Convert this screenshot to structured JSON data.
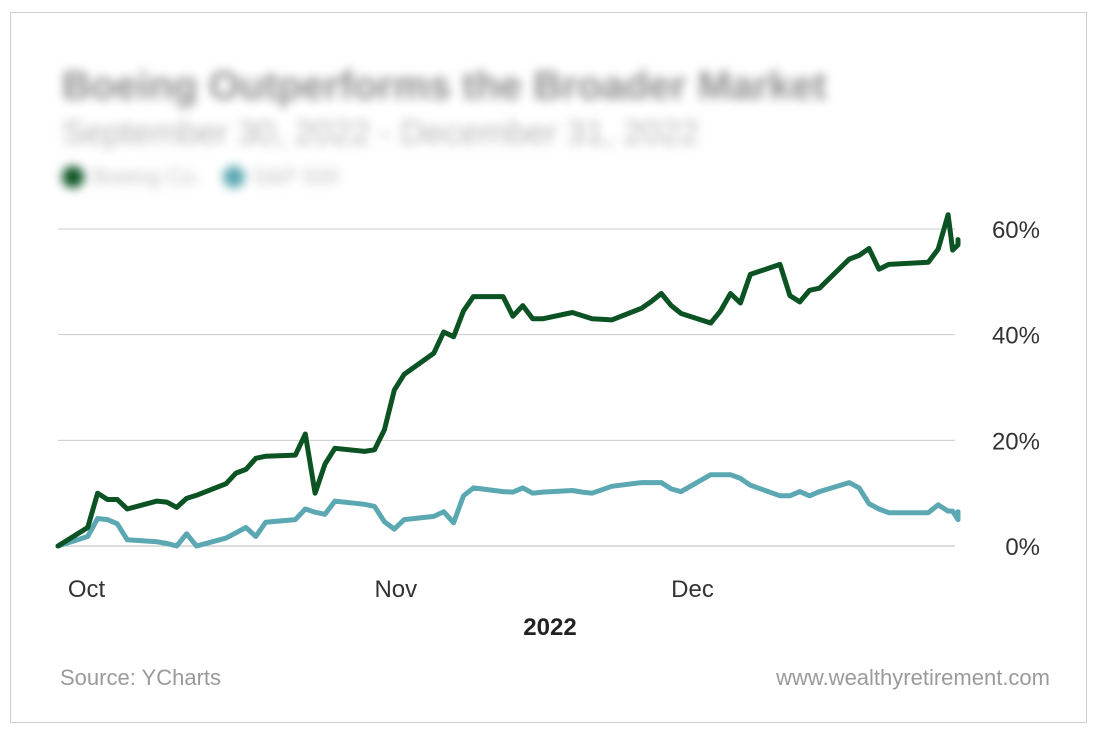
{
  "header": {
    "title": "Boeing Outperforms the Broader Market",
    "subtitle": "September 30, 2022 - December 31, 2022"
  },
  "colors": {
    "boeing": "#0b5323",
    "sp500": "#5ba8b3",
    "grid": "#cccccc",
    "axis_text": "#333333"
  },
  "footer": {
    "source": "Source: YCharts",
    "site": "www.wealthyretirement.com"
  },
  "chart_data": {
    "type": "line",
    "title": "Boeing Outperforms the Broader Market",
    "subtitle": "September 30, 2022 - December 31, 2022",
    "xlabel": "2022",
    "ylabel": "",
    "x_tick_labels": [
      "Oct",
      "Nov",
      "Dec"
    ],
    "y_tick_labels": [
      "0%",
      "20%",
      "40%",
      "60%"
    ],
    "y_ticks": [
      0,
      20,
      40,
      60
    ],
    "ylim": [
      0,
      60
    ],
    "xlim": [
      "2022-09-30",
      "2022-12-30"
    ],
    "grid": true,
    "legend_position": "top-left",
    "series": [
      {
        "name": "Boeing Co.",
        "color": "#0b5323",
        "points": [
          [
            "2022-09-30",
            0
          ],
          [
            "2022-10-03",
            3.5
          ],
          [
            "2022-10-04",
            10
          ],
          [
            "2022-10-05",
            8.8
          ],
          [
            "2022-10-06",
            8.8
          ],
          [
            "2022-10-07",
            7
          ],
          [
            "2022-10-10",
            8.5
          ],
          [
            "2022-10-11",
            8.3
          ],
          [
            "2022-10-12",
            7.3
          ],
          [
            "2022-10-13",
            9
          ],
          [
            "2022-10-14",
            9.6
          ],
          [
            "2022-10-17",
            11.8
          ],
          [
            "2022-10-18",
            13.8
          ],
          [
            "2022-10-19",
            14.5
          ],
          [
            "2022-10-20",
            16.6
          ],
          [
            "2022-10-21",
            17
          ],
          [
            "2022-10-24",
            17.2
          ],
          [
            "2022-10-25",
            21.2
          ],
          [
            "2022-10-26",
            10
          ],
          [
            "2022-10-27",
            15.5
          ],
          [
            "2022-10-28",
            18.5
          ],
          [
            "2022-10-31",
            17.9
          ],
          [
            "2022-11-01",
            18.2
          ],
          [
            "2022-11-02",
            22
          ],
          [
            "2022-11-03",
            29.5
          ],
          [
            "2022-11-04",
            32.5
          ],
          [
            "2022-11-07",
            36.5
          ],
          [
            "2022-11-08",
            40.5
          ],
          [
            "2022-11-09",
            39.6
          ],
          [
            "2022-11-10",
            44.5
          ],
          [
            "2022-11-11",
            47.2
          ],
          [
            "2022-11-14",
            47.2
          ],
          [
            "2022-11-15",
            43.5
          ],
          [
            "2022-11-16",
            45.5
          ],
          [
            "2022-11-17",
            43
          ],
          [
            "2022-11-18",
            43
          ],
          [
            "2022-11-21",
            44.2
          ],
          [
            "2022-11-22",
            43.6
          ],
          [
            "2022-11-23",
            43
          ],
          [
            "2022-11-25",
            42.8
          ],
          [
            "2022-11-28",
            45
          ],
          [
            "2022-11-29",
            46.3
          ],
          [
            "2022-11-30",
            47.8
          ],
          [
            "2022-12-01",
            45.5
          ],
          [
            "2022-12-02",
            44
          ],
          [
            "2022-12-05",
            42.2
          ],
          [
            "2022-12-06",
            44.5
          ],
          [
            "2022-12-07",
            47.8
          ],
          [
            "2022-12-08",
            46
          ],
          [
            "2022-12-09",
            51.4
          ],
          [
            "2022-12-12",
            53.3
          ],
          [
            "2022-12-13",
            47.4
          ],
          [
            "2022-12-14",
            46.2
          ],
          [
            "2022-12-15",
            48.4
          ],
          [
            "2022-12-16",
            48.8
          ],
          [
            "2022-12-19",
            54.3
          ],
          [
            "2022-12-20",
            55
          ],
          [
            "2022-12-21",
            56.3
          ],
          [
            "2022-12-22",
            52.4
          ],
          [
            "2022-12-23",
            53.3
          ],
          [
            "2022-12-27",
            53.7
          ],
          [
            "2022-12-28",
            56.2
          ],
          [
            "2022-12-29",
            62.7
          ],
          [
            "2022-12-29",
            56
          ],
          [
            "2022-12-30",
            57
          ],
          [
            "2022-12-30",
            58
          ]
        ]
      },
      {
        "name": "S&P 500",
        "color": "#5ba8b3",
        "points": [
          [
            "2022-09-30",
            0
          ],
          [
            "2022-10-03",
            1.8
          ],
          [
            "2022-10-04",
            5.2
          ],
          [
            "2022-10-05",
            5
          ],
          [
            "2022-10-06",
            4.2
          ],
          [
            "2022-10-07",
            1.2
          ],
          [
            "2022-10-10",
            0.8
          ],
          [
            "2022-10-11",
            0.5
          ],
          [
            "2022-10-12",
            0
          ],
          [
            "2022-10-13",
            2.3
          ],
          [
            "2022-10-14",
            0
          ],
          [
            "2022-10-17",
            1.5
          ],
          [
            "2022-10-18",
            2.5
          ],
          [
            "2022-10-19",
            3.5
          ],
          [
            "2022-10-20",
            1.8
          ],
          [
            "2022-10-21",
            4.5
          ],
          [
            "2022-10-24",
            5
          ],
          [
            "2022-10-25",
            7
          ],
          [
            "2022-10-26",
            6.4
          ],
          [
            "2022-10-27",
            6
          ],
          [
            "2022-10-28",
            8.5
          ],
          [
            "2022-10-31",
            7.9
          ],
          [
            "2022-11-01",
            7.5
          ],
          [
            "2022-11-02",
            4.6
          ],
          [
            "2022-11-03",
            3.2
          ],
          [
            "2022-11-04",
            5
          ],
          [
            "2022-11-07",
            5.6
          ],
          [
            "2022-11-08",
            6.5
          ],
          [
            "2022-11-09",
            4.4
          ],
          [
            "2022-11-10",
            9.5
          ],
          [
            "2022-11-11",
            11
          ],
          [
            "2022-11-14",
            10.3
          ],
          [
            "2022-11-15",
            10.2
          ],
          [
            "2022-11-16",
            11
          ],
          [
            "2022-11-17",
            10
          ],
          [
            "2022-11-18",
            10.2
          ],
          [
            "2022-11-21",
            10.5
          ],
          [
            "2022-11-22",
            10.2
          ],
          [
            "2022-11-23",
            10
          ],
          [
            "2022-11-25",
            11.3
          ],
          [
            "2022-11-28",
            12
          ],
          [
            "2022-11-29",
            12
          ],
          [
            "2022-11-30",
            12
          ],
          [
            "2022-12-01",
            10.8
          ],
          [
            "2022-12-02",
            10.3
          ],
          [
            "2022-12-05",
            13.5
          ],
          [
            "2022-12-06",
            13.5
          ],
          [
            "2022-12-07",
            13.5
          ],
          [
            "2022-12-08",
            12.8
          ],
          [
            "2022-12-09",
            11.5
          ],
          [
            "2022-12-12",
            9.5
          ],
          [
            "2022-12-13",
            9.5
          ],
          [
            "2022-12-14",
            10.3
          ],
          [
            "2022-12-15",
            9.5
          ],
          [
            "2022-12-16",
            10.3
          ],
          [
            "2022-12-19",
            12
          ],
          [
            "2022-12-20",
            11
          ],
          [
            "2022-12-21",
            8
          ],
          [
            "2022-12-22",
            7
          ],
          [
            "2022-12-23",
            6.3
          ],
          [
            "2022-12-27",
            6.3
          ],
          [
            "2022-12-28",
            7.8
          ],
          [
            "2022-12-29",
            6.6
          ],
          [
            "2022-12-29",
            6.6
          ],
          [
            "2022-12-30",
            5
          ],
          [
            "2022-12-30",
            6.5
          ]
        ]
      }
    ]
  }
}
